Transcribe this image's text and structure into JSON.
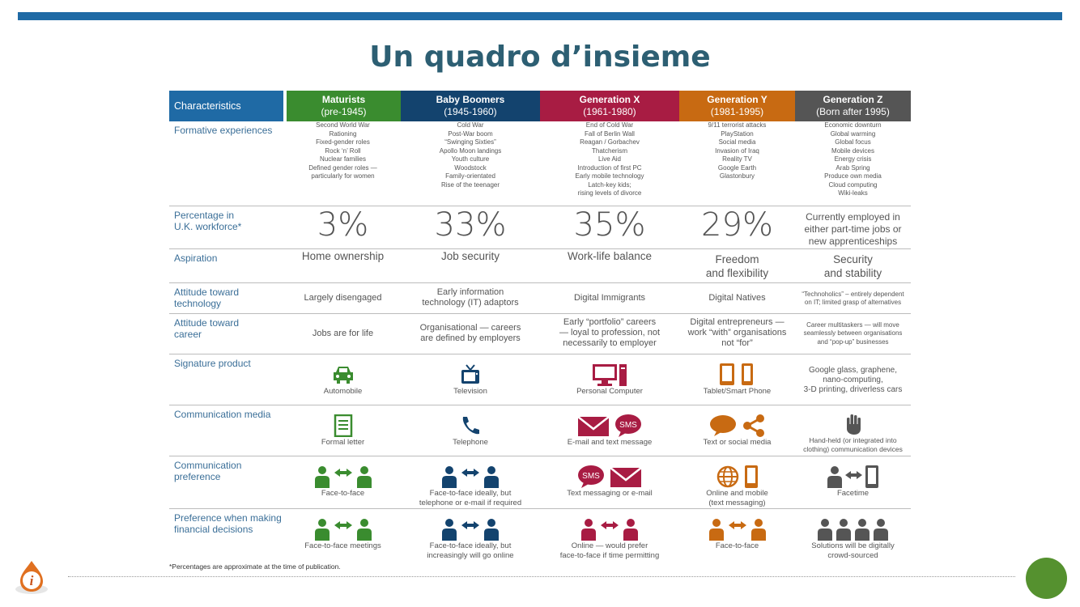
{
  "slide": {
    "title": "Un quadro d’insieme",
    "footnote": "*Percentages are approximate at the time of publication."
  },
  "colors": {
    "topbar": "#1f6aa5",
    "characteristics": "#1f6aa5",
    "maturists": "#3a8c2f",
    "baby_boomers": "#13436e",
    "generation_x": "#a81c43",
    "generation_y": "#c86a12",
    "generation_z": "#555555"
  },
  "headers": {
    "characteristics": "Characteristics",
    "maturists": {
      "name": "Maturists",
      "years": "(pre-1945)"
    },
    "boomers": {
      "name": "Baby Boomers",
      "years": "(1945-1960)"
    },
    "genx": {
      "name": "Generation X",
      "years": "(1961-1980)"
    },
    "geny": {
      "name": "Generation Y",
      "years": "(1981-1995)"
    },
    "genz": {
      "name": "Generation Z",
      "years": "(Born after 1995)"
    }
  },
  "rows": {
    "formative": {
      "label": "Formative experiences",
      "maturists": [
        "Second World War",
        "Rationing",
        "Fixed-gender roles",
        "Rock ‘n’ Roll",
        "Nuclear families",
        "Defined gender roles —",
        "particularly for women"
      ],
      "boomers": [
        "Cold War",
        "Post-War boom",
        "“Swinging Sixties”",
        "Apollo Moon landings",
        "Youth culture",
        "Woodstock",
        "Family-orientated",
        "Rise of the teenager"
      ],
      "genx": [
        "End of Cold War",
        "Fall of Berlin Wall",
        "Reagan / Gorbachev",
        "Thatcherism",
        "Live Aid",
        "Introduction of first PC",
        "Early mobile technology",
        "Latch-key kids;",
        "rising levels of divorce"
      ],
      "geny": [
        "9/11 terrorist attacks",
        "PlayStation",
        "Social media",
        "Invasion of Iraq",
        "Reality TV",
        "Google Earth",
        "Glastonbury"
      ],
      "genz": [
        "Economic downturn",
        "Global warming",
        "Global focus",
        "Mobile devices",
        "Energy crisis",
        "Arab Spring",
        "Produce own media",
        "Cloud computing",
        "Wiki-leaks"
      ]
    },
    "percentage": {
      "label_line1": "Percentage in",
      "label_line2": "U.K. workforce*",
      "maturists": "3%",
      "boomers": "33%",
      "genx": "35%",
      "geny": "29%",
      "genz": [
        "Currently employed in",
        "either part-time jobs or",
        "new apprenticeships"
      ]
    },
    "aspiration": {
      "label": "Aspiration",
      "maturists": "Home ownership",
      "boomers": "Job security",
      "genx": "Work-life balance",
      "geny": [
        "Freedom",
        "and flexibility"
      ],
      "genz": [
        "Security",
        "and stability"
      ]
    },
    "technology": {
      "label_line1": "Attitude toward",
      "label_line2": "technology",
      "maturists": "Largely disengaged",
      "boomers": [
        "Early information",
        "technology (IT) adaptors"
      ],
      "genx": "Digital Immigrants",
      "geny": "Digital Natives",
      "genz": [
        "“Technoholics” – entirely dependent",
        "on IT; limited grasp of alternatives"
      ]
    },
    "career": {
      "label_line1": "Attitude toward",
      "label_line2": "career",
      "maturists": "Jobs are for life",
      "boomers": [
        "Organisational — careers",
        "are defined by employers"
      ],
      "genx": [
        "Early “portfolio” careers",
        "— loyal to profession, not",
        "necessarily to employer"
      ],
      "geny": [
        "Digital entrepreneurs —",
        "work “with” organisations",
        "not “for”"
      ],
      "genz": [
        "Career multitaskers — will move",
        "seamlessly between organisations",
        "and “pop-up” businesses"
      ]
    },
    "product": {
      "label": "Signature product",
      "maturists": "Automobile",
      "boomers": "Television",
      "genx": "Personal Computer",
      "geny": "Tablet/Smart Phone",
      "genz": [
        "Google glass, graphene,",
        "nano-computing,",
        "3-D printing, driverless cars"
      ]
    },
    "media": {
      "label": "Communication media",
      "maturists": "Formal letter",
      "boomers": "Telephone",
      "genx": "E-mail and text message",
      "geny": "Text or social media",
      "genz": [
        "Hand-held (or integrated into",
        "clothing) communication devices"
      ],
      "sms": "SMS"
    },
    "preference": {
      "label_line1": "Communication",
      "label_line2": "preference",
      "maturists": "Face-to-face",
      "boomers": [
        "Face-to-face ideally, but",
        "telephone or e-mail if required"
      ],
      "genx": "Text messaging or e-mail",
      "geny": [
        "Online and mobile",
        "(text messaging)"
      ],
      "genz": "Facetime",
      "sms": "SMS"
    },
    "financial": {
      "label_line1": "Preference when making",
      "label_line2": "financial decisions",
      "maturists": "Face-to-face meetings",
      "boomers": [
        "Face-to-face ideally, but",
        "increasingly will go online"
      ],
      "genx": [
        "Online — would prefer",
        "face-to-face if time permitting"
      ],
      "geny": "Face-to-face",
      "genz": [
        "Solutions will be digitally",
        "crowd-sourced"
      ]
    }
  },
  "icons": {
    "logo": "info-drop-logo",
    "corner": "green-circle"
  }
}
